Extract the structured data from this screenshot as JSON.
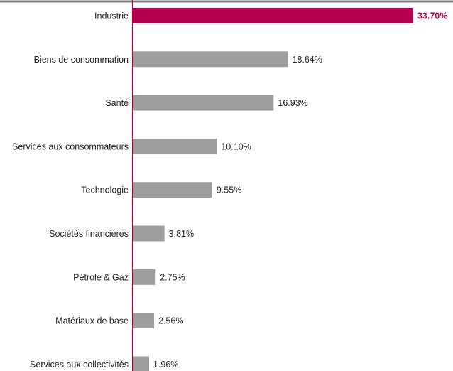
{
  "chart_data": {
    "type": "bar",
    "orientation": "horizontal",
    "categories": [
      "Industrie",
      "Biens de consommation",
      "Santé",
      "Services aux consommateurs",
      "Technologie",
      "Sociétés financières",
      "Pétrole & Gaz",
      "Matériaux de base",
      "Services aux collectivités"
    ],
    "values": [
      33.7,
      18.64,
      16.93,
      10.1,
      9.55,
      3.81,
      2.75,
      2.56,
      1.96
    ],
    "value_labels": [
      "33.70%",
      "18.64%",
      "16.93%",
      "10.10%",
      "9.55%",
      "3.81%",
      "2.75%",
      "2.56%",
      "1.96%"
    ],
    "highlight_index": 0,
    "colors": {
      "highlight": "#B5004F",
      "bar": "#9E9E9E",
      "axis": "#B5004F",
      "top_rule": "#7F7F7F",
      "label": "#222222"
    },
    "title": "",
    "xlabel": "",
    "ylabel": "",
    "grid": false
  }
}
